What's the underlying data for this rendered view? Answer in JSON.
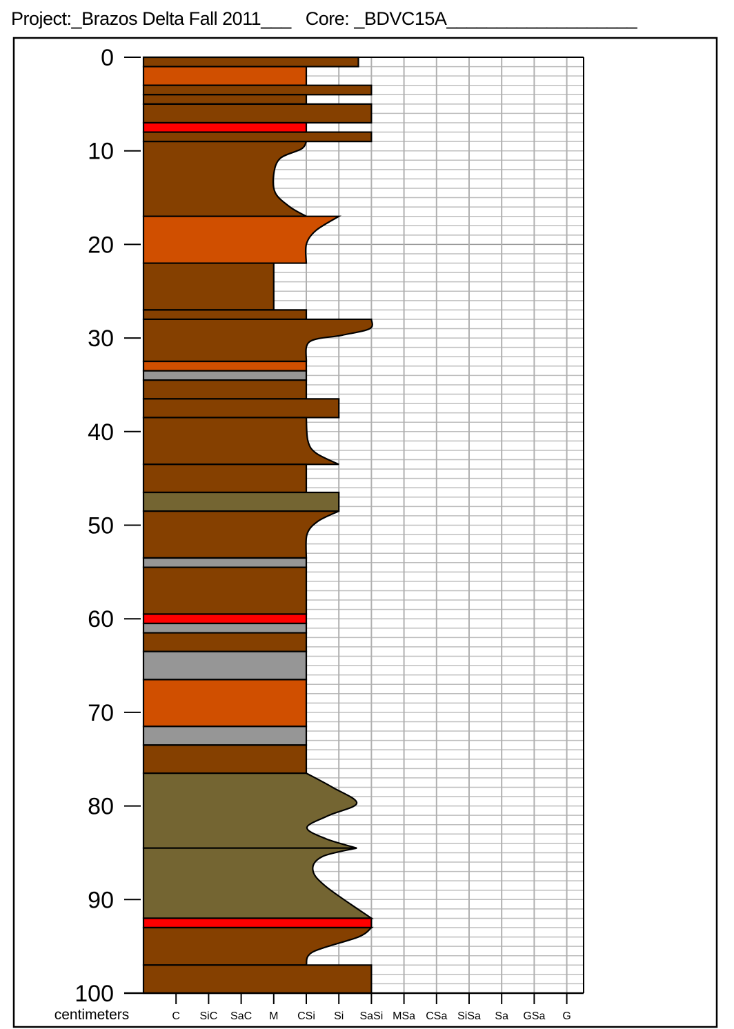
{
  "header": {
    "project_label": "Project:",
    "project_value": "_Brazos Delta Fall 2011___",
    "core_label": "Core:",
    "core_value": "_BDVC15A___________________"
  },
  "chart_data": {
    "type": "bar",
    "orientation": "horizontal core log",
    "ylabel": "centimeters",
    "ylim": [
      0,
      100
    ],
    "y_inverted": true,
    "y_ticks": [
      0,
      10,
      20,
      30,
      40,
      50,
      60,
      70,
      80,
      90,
      100
    ],
    "x_categories": [
      "C",
      "SiC",
      "SaC",
      "M",
      "CSi",
      "Si",
      "SaSi",
      "MSa",
      "CSa",
      "SiSa",
      "Sa",
      "GSa",
      "G"
    ],
    "grid": true,
    "colors": {
      "brown": "#854000",
      "orange": "#d04f00",
      "red": "#ff0000",
      "gray": "#969696",
      "olive": "#746532"
    },
    "layers": [
      {
        "top": 0,
        "bottom": 1,
        "color": "brown",
        "grain": 6.6
      },
      {
        "top": 1,
        "bottom": 3,
        "color": "orange",
        "grain": 5
      },
      {
        "top": 3,
        "bottom": 4,
        "color": "brown",
        "grain": 7
      },
      {
        "top": 4,
        "bottom": 5,
        "color": "brown",
        "grain": 5
      },
      {
        "top": 5,
        "bottom": 7,
        "color": "brown",
        "grain": 7
      },
      {
        "top": 7,
        "bottom": 8,
        "color": "red",
        "grain": 5
      },
      {
        "top": 8,
        "bottom": 9,
        "color": "brown",
        "grain": 7
      },
      {
        "top": 9,
        "bottom": 17,
        "color": "brown",
        "profile": [
          [
            9,
            5
          ],
          [
            9.8,
            4.85
          ],
          [
            10.8,
            4.2
          ],
          [
            12.5,
            4
          ],
          [
            14.5,
            4.05
          ],
          [
            16,
            4.5
          ],
          [
            17,
            5
          ]
        ]
      },
      {
        "top": 17,
        "bottom": 22,
        "color": "orange",
        "profile": [
          [
            17,
            6
          ],
          [
            18.5,
            5.3
          ],
          [
            20,
            5
          ],
          [
            22,
            5
          ]
        ]
      },
      {
        "top": 22,
        "bottom": 27,
        "color": "brown",
        "grain": 4
      },
      {
        "top": 27,
        "bottom": 28,
        "color": "brown",
        "grain": 5
      },
      {
        "top": 28,
        "bottom": 32.5,
        "color": "brown",
        "profile": [
          [
            28,
            7
          ],
          [
            29,
            6.95
          ],
          [
            29.7,
            6.1
          ],
          [
            30.4,
            5.1
          ],
          [
            32.5,
            5
          ]
        ]
      },
      {
        "top": 32.5,
        "bottom": 33.5,
        "color": "orange",
        "grain": 5
      },
      {
        "top": 33.5,
        "bottom": 34.5,
        "color": "gray",
        "grain": 5
      },
      {
        "top": 34.5,
        "bottom": 36.5,
        "color": "brown",
        "grain": 5
      },
      {
        "top": 36.5,
        "bottom": 38.5,
        "color": "brown",
        "grain": 6
      },
      {
        "top": 38.5,
        "bottom": 43.5,
        "color": "brown",
        "profile": [
          [
            38.5,
            5
          ],
          [
            41,
            5.05
          ],
          [
            42.3,
            5.3
          ],
          [
            43.5,
            6
          ]
        ]
      },
      {
        "top": 43.5,
        "bottom": 46.5,
        "color": "brown",
        "grain": 5
      },
      {
        "top": 46.5,
        "bottom": 48.5,
        "color": "olive",
        "grain": 6
      },
      {
        "top": 48.5,
        "bottom": 53.5,
        "color": "brown",
        "profile": [
          [
            48.5,
            6
          ],
          [
            49.6,
            5.35
          ],
          [
            51,
            5.02
          ],
          [
            53.5,
            5
          ]
        ]
      },
      {
        "top": 53.5,
        "bottom": 54.5,
        "color": "gray",
        "grain": 5
      },
      {
        "top": 54.5,
        "bottom": 59.5,
        "color": "brown",
        "grain": 5
      },
      {
        "top": 59.5,
        "bottom": 60.5,
        "color": "red",
        "grain": 5
      },
      {
        "top": 60.5,
        "bottom": 61.5,
        "color": "gray",
        "grain": 5
      },
      {
        "top": 61.5,
        "bottom": 63.5,
        "color": "brown",
        "grain": 5
      },
      {
        "top": 63.5,
        "bottom": 66.5,
        "color": "gray",
        "grain": 5
      },
      {
        "top": 66.5,
        "bottom": 71.5,
        "color": "orange",
        "grain": 5
      },
      {
        "top": 71.5,
        "bottom": 73.5,
        "color": "gray",
        "grain": 5
      },
      {
        "top": 73.5,
        "bottom": 76.5,
        "color": "brown",
        "grain": 5
      },
      {
        "top": 76.5,
        "bottom": 84.5,
        "color": "olive",
        "profile": [
          [
            76.5,
            5
          ],
          [
            78,
            5.8
          ],
          [
            79.7,
            6.55
          ],
          [
            81,
            5.7
          ],
          [
            82.3,
            5.02
          ],
          [
            83.5,
            5.6
          ],
          [
            84.5,
            6.55
          ]
        ]
      },
      {
        "top": 84.5,
        "bottom": 92,
        "color": "olive",
        "profile": [
          [
            84.5,
            6.55
          ],
          [
            85.4,
            5.5
          ],
          [
            86.8,
            5.2
          ],
          [
            88.6,
            5.6
          ],
          [
            92,
            7
          ]
        ]
      },
      {
        "top": 92,
        "bottom": 93,
        "color": "red",
        "grain": 7
      },
      {
        "top": 93,
        "bottom": 97,
        "color": "brown",
        "profile": [
          [
            93,
            7
          ],
          [
            94,
            6.6
          ],
          [
            95.6,
            5.2
          ],
          [
            97,
            5
          ]
        ]
      },
      {
        "top": 97,
        "bottom": 100,
        "color": "brown",
        "grain": 7
      }
    ]
  }
}
